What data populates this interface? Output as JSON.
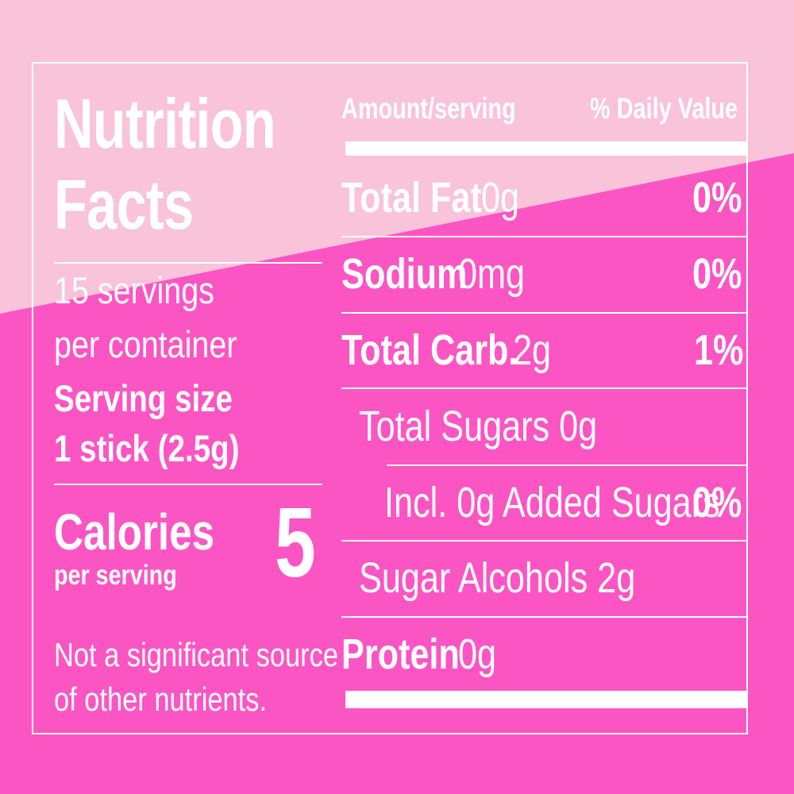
{
  "colors": {
    "background_light": "#F9C3DA",
    "background_dark": "#FB55C4",
    "text": "#FFFFFF"
  },
  "left": {
    "title_line1": "Nutrition",
    "title_line2": "Facts",
    "servings_line1": "15 servings",
    "servings_line2": "per container",
    "serving_size_label": "Serving size",
    "serving_size_value": "1 stick (2.5g)",
    "calories_label": "Calories",
    "calories_sub": "per serving",
    "calories_value": "5",
    "footnote_line1": "Not a significant source",
    "footnote_line2": "of other nutrients."
  },
  "right": {
    "header_amount": "Amount/serving",
    "header_dv": "% Daily Value",
    "rows": [
      {
        "name": "Total Fat",
        "amount": "0g",
        "dv": "0%"
      },
      {
        "name": "Sodium",
        "amount": "0mg",
        "dv": "0%"
      },
      {
        "name": "Total Carb.",
        "amount": "2g",
        "dv": "1%"
      },
      {
        "name": "Total Sugars 0g",
        "amount": "",
        "dv": ""
      },
      {
        "name": "Incl. 0g Added Sugars",
        "amount": "",
        "dv": "0%"
      },
      {
        "name": "Sugar Alcohols 2g",
        "amount": "",
        "dv": ""
      },
      {
        "name": "Protein",
        "amount": "0g",
        "dv": ""
      }
    ]
  }
}
